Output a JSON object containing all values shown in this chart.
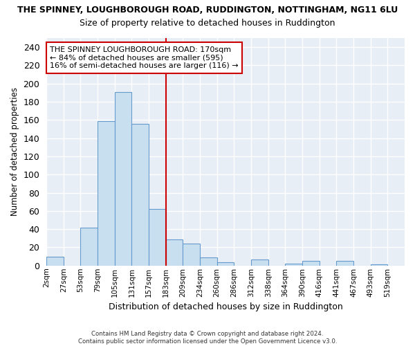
{
  "title": "THE SPINNEY, LOUGHBOROUGH ROAD, RUDDINGTON, NOTTINGHAM, NG11 6LU",
  "subtitle": "Size of property relative to detached houses in Ruddington",
  "xlabel": "Distribution of detached houses by size in Ruddington",
  "ylabel": "Number of detached properties",
  "bar_color": "#c8dff0",
  "bar_edge_color": "#6699cc",
  "bg_color": "#e8eef6",
  "fig_color": "#ffffff",
  "grid_color": "#ffffff",
  "categories": [
    "2sqm",
    "27sqm",
    "53sqm",
    "79sqm",
    "105sqm",
    "131sqm",
    "157sqm",
    "183sqm",
    "209sqm",
    "234sqm",
    "260sqm",
    "286sqm",
    "312sqm",
    "338sqm",
    "364sqm",
    "390sqm",
    "416sqm",
    "441sqm",
    "467sqm",
    "493sqm",
    "519sqm"
  ],
  "values": [
    10,
    0,
    42,
    159,
    191,
    156,
    62,
    29,
    24,
    9,
    4,
    0,
    7,
    0,
    2,
    5,
    0,
    5,
    0,
    1,
    0
  ],
  "ylim": [
    0,
    250
  ],
  "yticks": [
    0,
    20,
    40,
    60,
    80,
    100,
    120,
    140,
    160,
    180,
    200,
    220,
    240
  ],
  "property_line_color": "#cc0000",
  "annotation_text": "THE SPINNEY LOUGHBOROUGH ROAD: 170sqm\n← 84% of detached houses are smaller (595)\n16% of semi-detached houses are larger (116) →",
  "annotation_box_color": "#ffffff",
  "annotation_box_edge": "#cc0000",
  "footer": "Contains HM Land Registry data © Crown copyright and database right 2024.\nContains public sector information licensed under the Open Government Licence v3.0."
}
